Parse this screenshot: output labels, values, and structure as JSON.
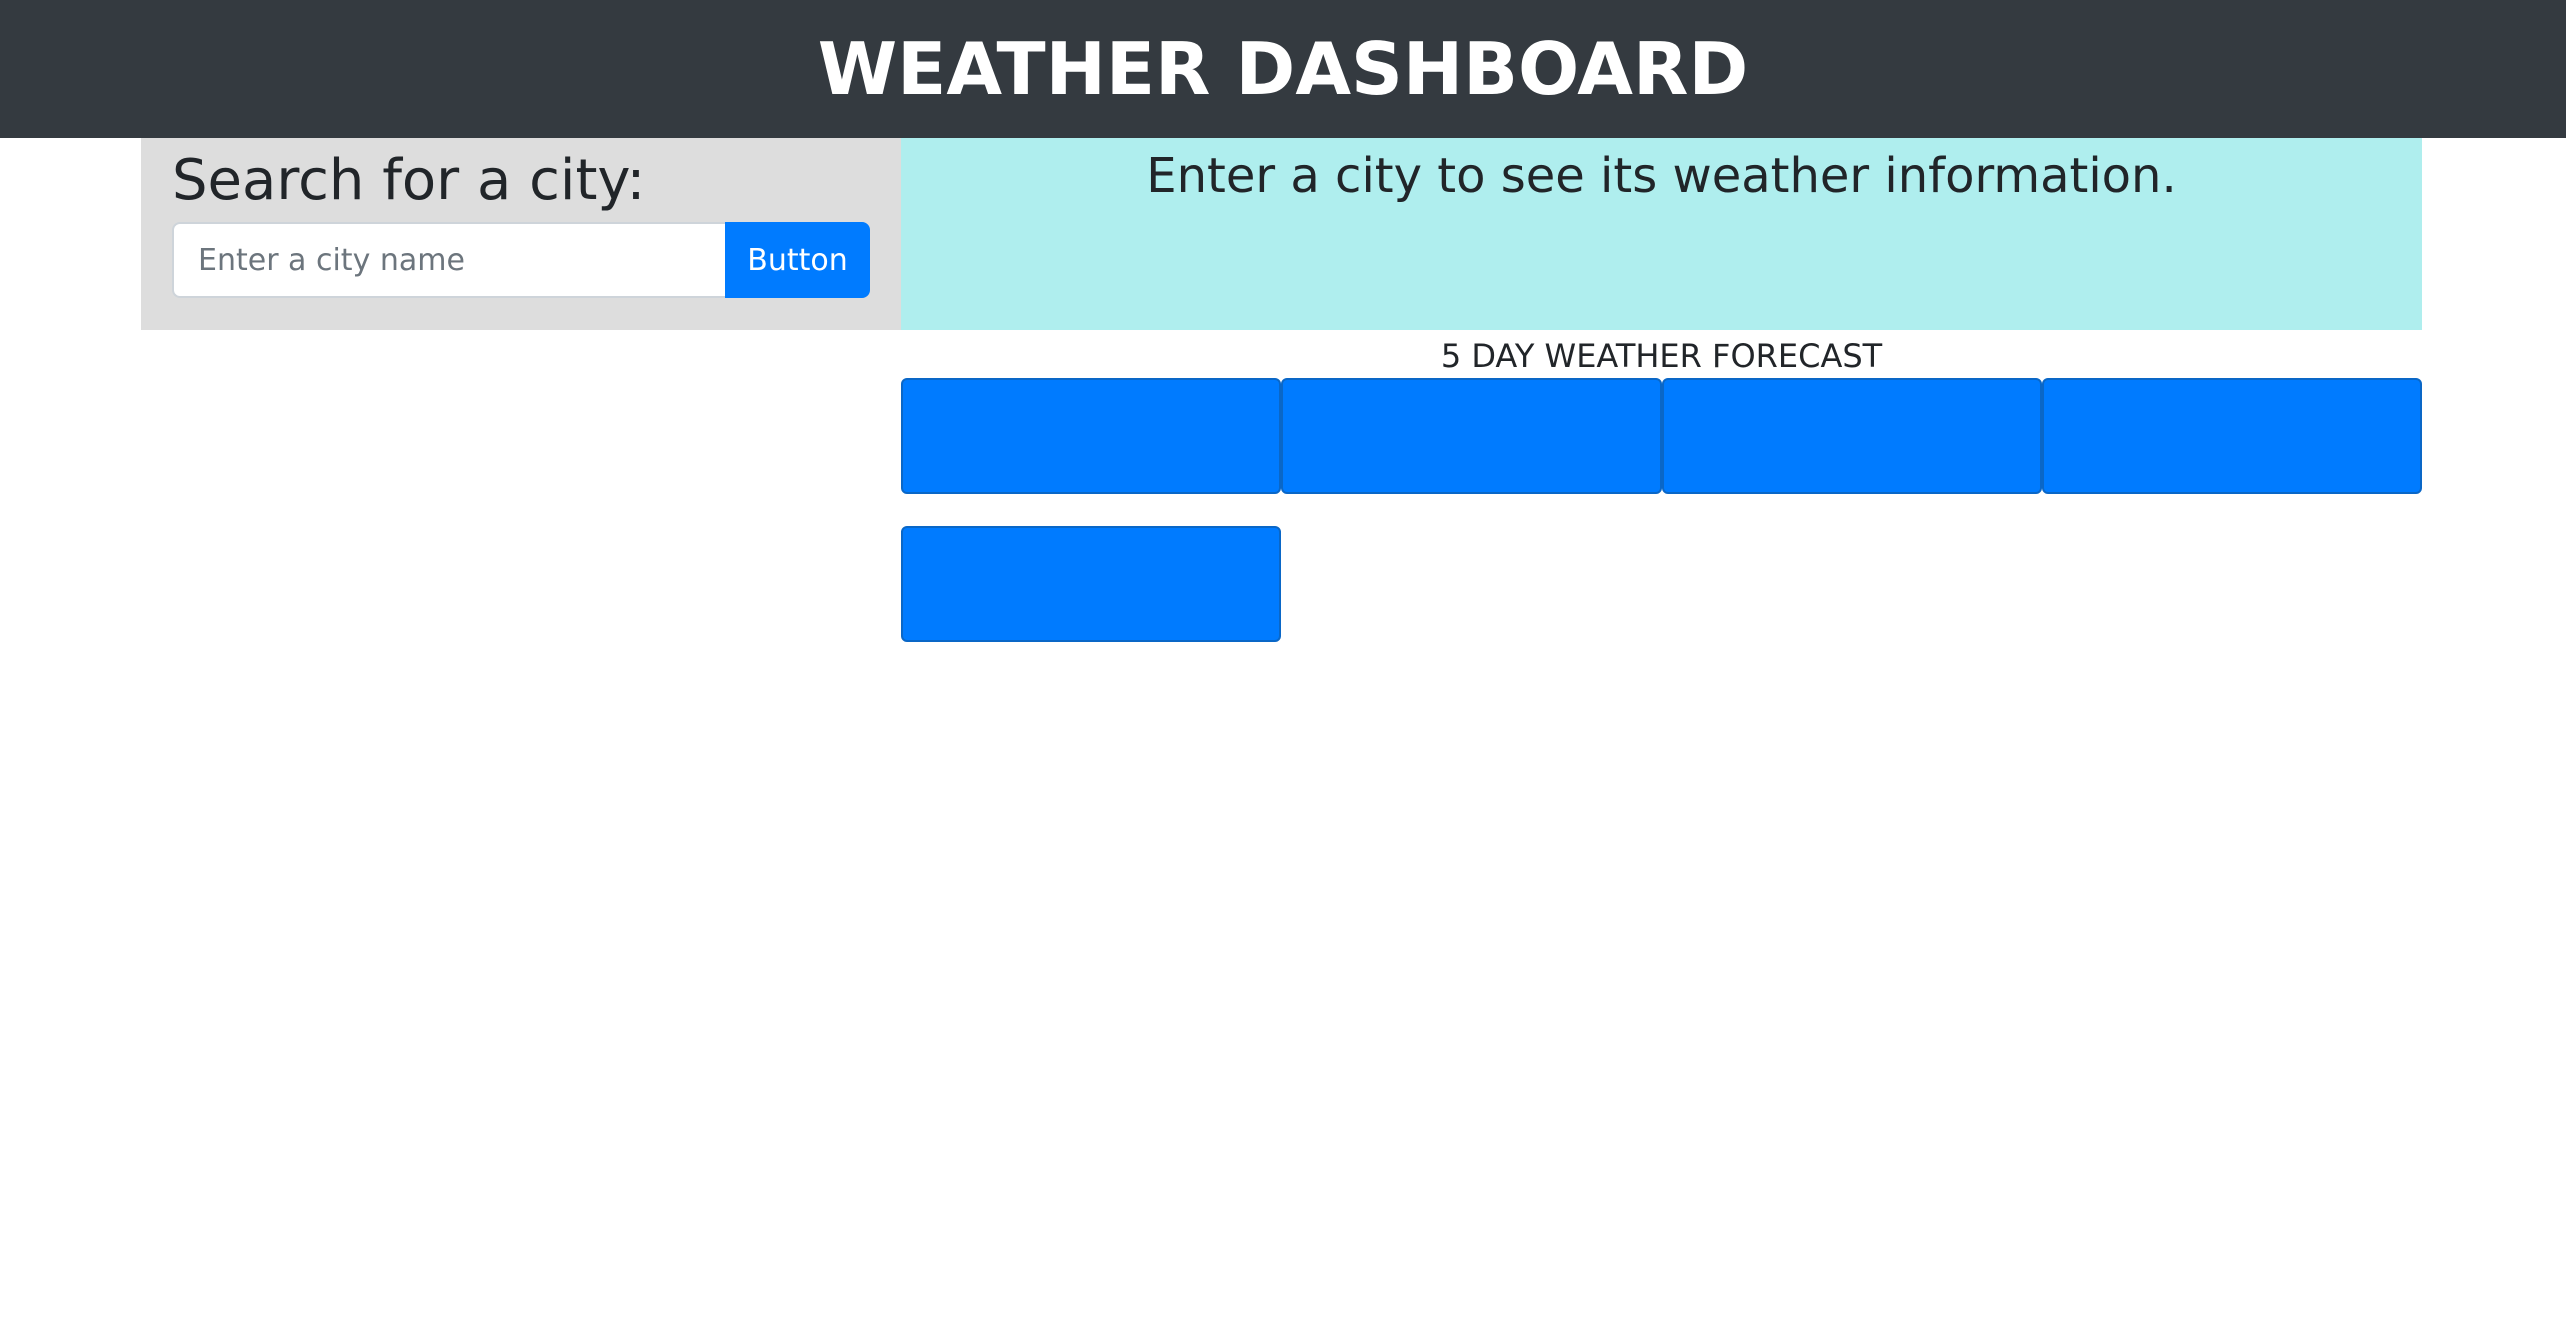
{
  "header": {
    "title": "WEATHER DASHBOARD"
  },
  "search": {
    "title": "Search for a city:",
    "input_value": "",
    "placeholder": "Enter a city name",
    "button_label": "Button"
  },
  "current": {
    "message": "Enter a city to see its weather information."
  },
  "forecast": {
    "title": "5 DAY WEATHER FORECAST",
    "cards": [
      {
        "text": ""
      },
      {
        "text": ""
      },
      {
        "text": ""
      },
      {
        "text": ""
      },
      {
        "text": ""
      }
    ]
  },
  "colors": {
    "header_bg": "#343a40",
    "search_panel_bg": "#dddddd",
    "current_panel_bg": "#afeeee",
    "accent": "#007bff"
  }
}
